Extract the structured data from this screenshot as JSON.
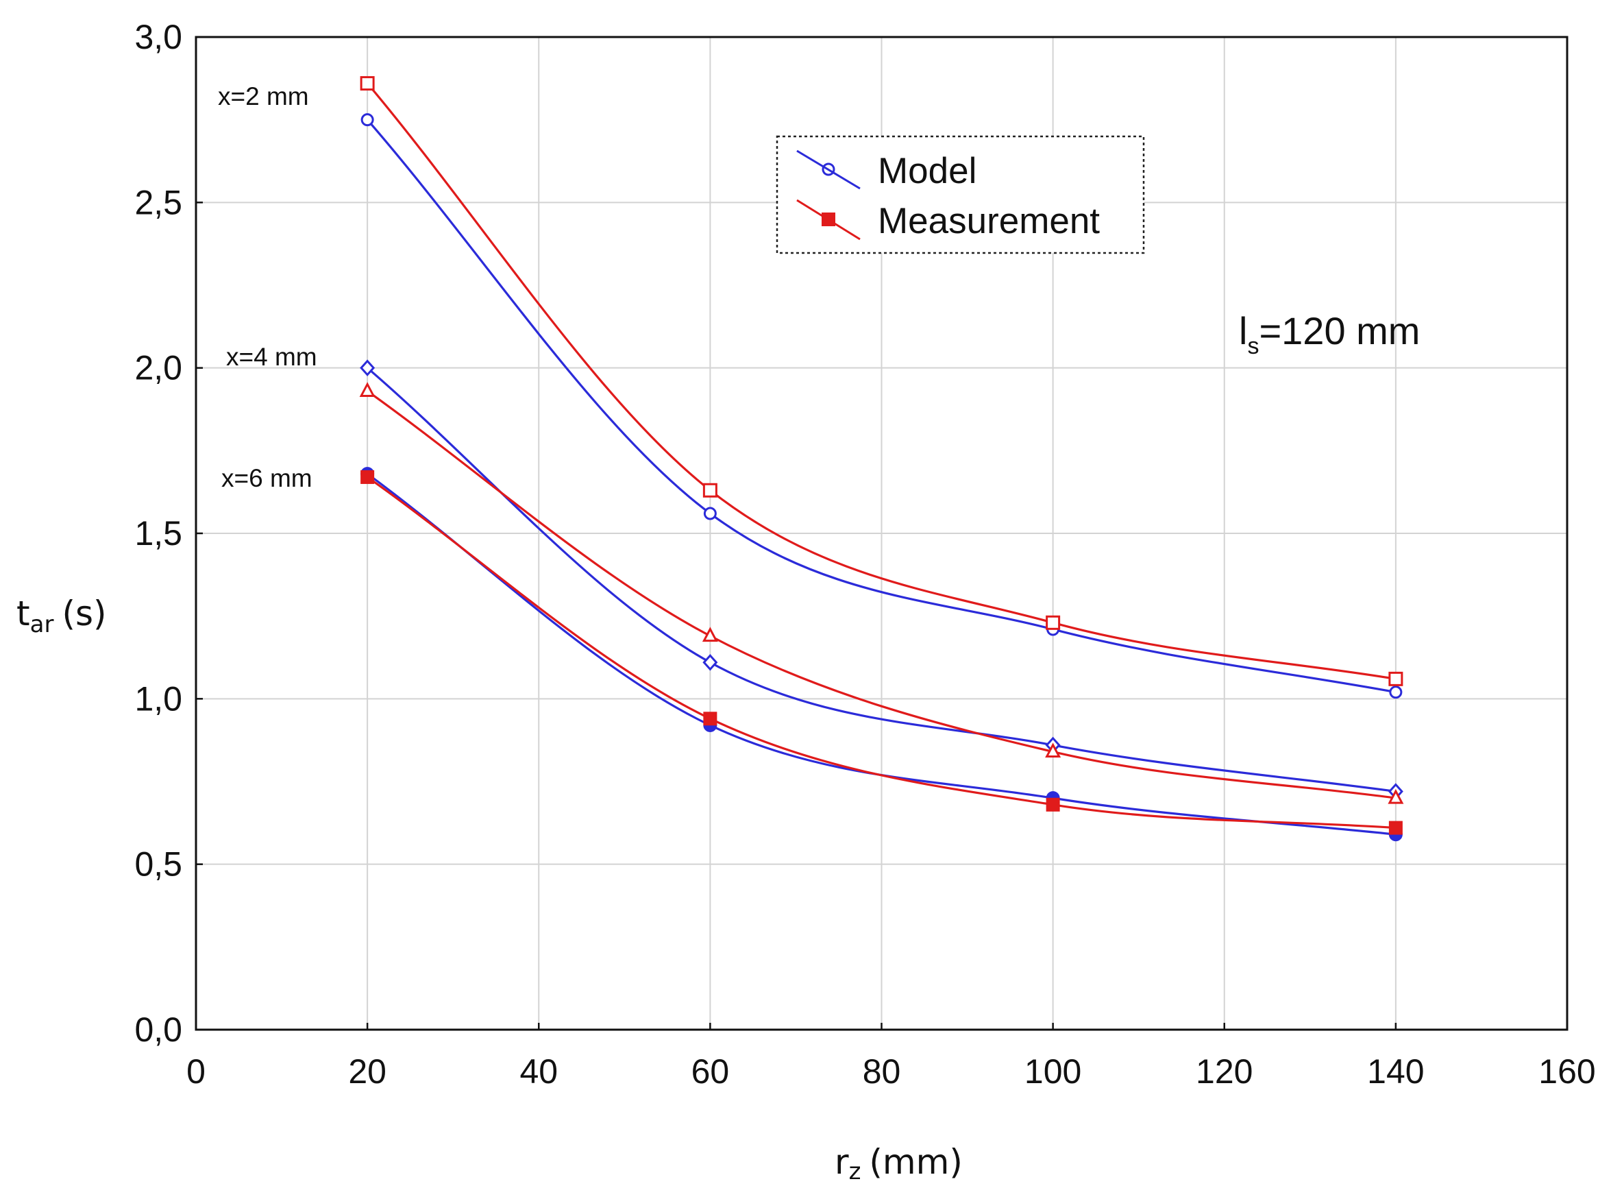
{
  "chart_data": {
    "type": "line",
    "x_axis": {
      "title_main": "r",
      "title_sub": "z",
      "title_unit": "(mm)",
      "range": [
        0,
        160
      ],
      "ticks": [
        0,
        20,
        40,
        60,
        80,
        100,
        120,
        140,
        160
      ],
      "tick_labels": [
        "0",
        "20",
        "40",
        "60",
        "80",
        "100",
        "120",
        "140",
        "160"
      ]
    },
    "y_axis": {
      "title_main": "t",
      "title_sub": "ar",
      "title_unit": "(s)",
      "range": [
        0,
        3.0
      ],
      "ticks": [
        0,
        0.5,
        1.0,
        1.5,
        2.0,
        2.5,
        3.0
      ],
      "tick_labels": [
        "0,0",
        "0,5",
        "1,0",
        "1,5",
        "2,0",
        "2,5",
        "3,0"
      ]
    },
    "grid": true,
    "legend": {
      "position": "top-center",
      "entries": [
        {
          "label": "Model",
          "color": "#2b2bd9",
          "marker": "circle"
        },
        {
          "label": "Measurement",
          "color": "#e01b1b",
          "marker": "filled-square"
        }
      ]
    },
    "annotation": {
      "main": "l",
      "sub": "s",
      "text": "=120 mm"
    },
    "x": [
      20,
      60,
      100,
      140
    ],
    "series": [
      {
        "name": "Model x=2 mm",
        "group_label": "x=2 mm",
        "kind": "model",
        "color": "#2b2bd9",
        "marker": "circle",
        "values": [
          2.75,
          1.56,
          1.21,
          1.02
        ]
      },
      {
        "name": "Measurement x=2 mm",
        "group_label": "x=2 mm",
        "kind": "measurement",
        "color": "#e01b1b",
        "marker": "square-open",
        "values": [
          2.86,
          1.63,
          1.23,
          1.06
        ]
      },
      {
        "name": "Model x=4 mm",
        "group_label": "x=4 mm",
        "kind": "model",
        "color": "#2b2bd9",
        "marker": "diamond",
        "values": [
          2.0,
          1.11,
          0.86,
          0.72
        ]
      },
      {
        "name": "Measurement x=4 mm",
        "group_label": "x=4 mm",
        "kind": "measurement",
        "color": "#e01b1b",
        "marker": "triangle",
        "values": [
          1.93,
          1.19,
          0.84,
          0.7
        ]
      },
      {
        "name": "Model x=6 mm",
        "group_label": "x=6 mm",
        "kind": "model",
        "color": "#2b2bd9",
        "marker": "filled-circle",
        "values": [
          1.68,
          0.92,
          0.7,
          0.59
        ]
      },
      {
        "name": "Measurement x=6 mm",
        "group_label": "x=6 mm",
        "kind": "measurement",
        "color": "#e01b1b",
        "marker": "filled-square",
        "values": [
          1.67,
          0.94,
          0.68,
          0.61
        ]
      }
    ],
    "series_labels": [
      "x=2 mm",
      "x=4 mm",
      "x=6 mm"
    ]
  }
}
